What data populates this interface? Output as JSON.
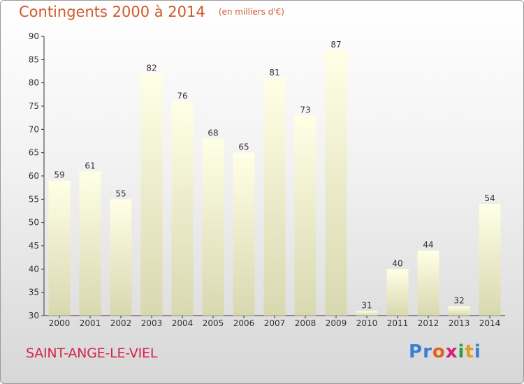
{
  "title": "Contingents 2000 à 2014",
  "unit_note": "(en milliers d'€)",
  "commune": "SAINT-ANGE-LE-VIEL",
  "logo": {
    "text": "Proxiti",
    "colors": [
      "#3b7fd0",
      "#3b7fd0",
      "#e0621e",
      "#d41f78",
      "#2e9e3e",
      "#e0a020",
      "#3b7fd0"
    ]
  },
  "colors": {
    "title": "#d0592b",
    "commune": "#d6234f",
    "bar_top": "#ffffe6",
    "bar_bottom": "#d8d8b0"
  },
  "chart_data": {
    "type": "bar",
    "categories": [
      "2000",
      "2001",
      "2002",
      "2003",
      "2004",
      "2005",
      "2006",
      "2007",
      "2008",
      "2009",
      "2010",
      "2011",
      "2012",
      "2013",
      "2014"
    ],
    "values": [
      59,
      61,
      55,
      82,
      76,
      68,
      65,
      81,
      73,
      87,
      31,
      40,
      44,
      32,
      54
    ],
    "title": "Contingents 2000 à 2014",
    "xlabel": "",
    "ylabel": "",
    "ylim": [
      30,
      90
    ],
    "yticks": [
      30,
      35,
      40,
      45,
      50,
      55,
      60,
      65,
      70,
      75,
      80,
      85,
      90
    ],
    "grid": false,
    "data_labels": true
  }
}
